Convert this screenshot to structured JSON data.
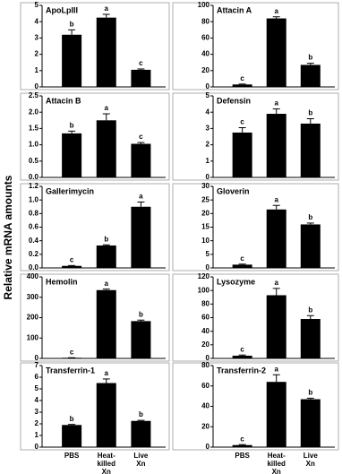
{
  "ylabel": "Relative mRNA amounts",
  "chart_data": [
    {
      "type": "bar",
      "title": "ApoLpIII",
      "values": [
        3.2,
        4.25,
        1.05
      ],
      "errors": [
        0.3,
        0.2,
        0.05
      ],
      "letters": [
        "b",
        "a",
        "c"
      ],
      "color": "#000000",
      "ylim": [
        0,
        5
      ],
      "yticks": [
        0,
        1,
        2,
        3,
        4,
        5
      ]
    },
    {
      "type": "bar",
      "title": "Attacin A",
      "values": [
        3,
        84,
        27
      ],
      "errors": [
        0.5,
        2,
        2
      ],
      "letters": [
        "c",
        "a",
        "b"
      ],
      "color": "#000000",
      "ylim": [
        0,
        100
      ],
      "yticks": [
        0,
        20,
        40,
        60,
        80,
        100
      ]
    },
    {
      "type": "bar",
      "title": "Attacin B",
      "values": [
        1.35,
        1.75,
        1.03
      ],
      "errors": [
        0.07,
        0.2,
        0.04
      ],
      "letters": [
        "b",
        "a",
        "c"
      ],
      "color": "#000000",
      "ylim": [
        0,
        2.5
      ],
      "yticks": [
        {
          "value": 0,
          "label": "0.0"
        },
        0.5,
        {
          "value": 1,
          "label": "1.0"
        },
        1.5,
        {
          "value": 2,
          "label": "2.0"
        },
        2.5
      ]
    },
    {
      "type": "bar",
      "title": "Defensin",
      "values": [
        2.75,
        3.9,
        3.3
      ],
      "errors": [
        0.3,
        0.3,
        0.3
      ],
      "letters": [
        "c",
        "a",
        "b"
      ],
      "color": "#000000",
      "ylim": [
        0,
        5
      ],
      "yticks": [
        0,
        1,
        2,
        3,
        4,
        5
      ]
    },
    {
      "type": "bar",
      "title": "Gallerimycin",
      "values": [
        0.03,
        0.33,
        0.9
      ],
      "errors": [
        0.005,
        0.01,
        0.07
      ],
      "letters": [
        "c",
        "b",
        "a"
      ],
      "color": "#000000",
      "ylim": [
        0,
        1.2
      ],
      "yticks": [
        {
          "value": 0,
          "label": "0.0"
        },
        0.2,
        0.4,
        0.6,
        0.8,
        {
          "value": 1,
          "label": "1.0"
        },
        1.2
      ]
    },
    {
      "type": "bar",
      "title": "Gloverin",
      "values": [
        1.2,
        21.5,
        16
      ],
      "errors": [
        0.2,
        1.5,
        0.5
      ],
      "letters": [
        "c",
        "a",
        "b"
      ],
      "color": "#000000",
      "ylim": [
        0,
        30
      ],
      "yticks": [
        0,
        5,
        10,
        15,
        20,
        25,
        30
      ]
    },
    {
      "type": "bar",
      "title": "Hemolin",
      "values": [
        3,
        335,
        183
      ],
      "errors": [
        0.5,
        5,
        5
      ],
      "letters": [
        "c",
        "a",
        "b"
      ],
      "color": "#000000",
      "ylim": [
        0,
        400
      ],
      "yticks": [
        0,
        100,
        200,
        300,
        400
      ]
    },
    {
      "type": "bar",
      "title": "Lysozyme",
      "values": [
        4,
        93,
        58
      ],
      "errors": [
        1,
        10,
        5
      ],
      "letters": [
        "c",
        "a",
        "b"
      ],
      "color": "#000000",
      "ylim": [
        0,
        120
      ],
      "yticks": [
        0,
        20,
        40,
        60,
        80,
        100,
        120
      ]
    },
    {
      "type": "bar",
      "title": "Transferrin-1",
      "categories": [
        "PBS",
        "Heat-killed Xn",
        "Live Xn"
      ],
      "values": [
        1.9,
        5.5,
        2.25
      ],
      "errors": [
        0.05,
        0.35,
        0.05
      ],
      "letters": [
        "b",
        "a",
        "b"
      ],
      "color": "#000000",
      "ylim": [
        0,
        7
      ],
      "yticks": [
        0,
        1,
        2,
        3,
        4,
        5,
        6,
        7
      ]
    },
    {
      "type": "bar",
      "title": "Transferrin-2",
      "categories": [
        "PBS",
        "Heat-killed Xn",
        "Live Xn"
      ],
      "values": [
        2,
        64,
        47
      ],
      "errors": [
        0.5,
        7,
        1
      ],
      "letters": [
        "c",
        "a",
        "b"
      ],
      "color": "#000000",
      "ylim": [
        0,
        80
      ],
      "yticks": [
        0,
        20,
        40,
        60,
        80
      ]
    }
  ]
}
